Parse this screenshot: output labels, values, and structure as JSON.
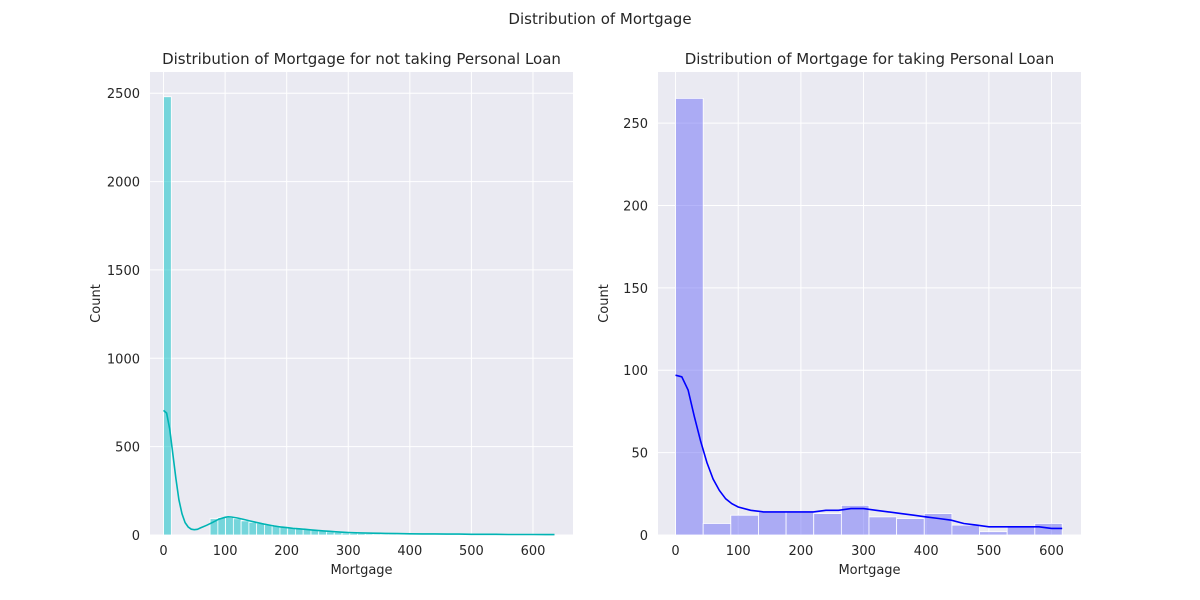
{
  "figure": {
    "suptitle": "Distribution of Mortgage"
  },
  "chart_data": [
    {
      "type": "bar",
      "subtype": "histogram-with-kde",
      "title": "Distribution of Mortgage for not taking Personal Loan",
      "xlabel": "Mortgage",
      "ylabel": "Count",
      "xlim": [
        -22,
        665
      ],
      "ylim": [
        0,
        2620
      ],
      "x_ticks": [
        0,
        100,
        200,
        300,
        400,
        500,
        600
      ],
      "y_ticks": [
        0,
        500,
        1000,
        1500,
        2000,
        2500
      ],
      "grid": true,
      "background": "#eaeaf2",
      "bar_color": "#00bfc4",
      "kde_color": "#00b4b4",
      "bins": [
        [
          0,
          12.6,
          2480
        ],
        [
          75.6,
          88.2,
          92
        ],
        [
          88.2,
          100.8,
          98
        ],
        [
          100.8,
          113.4,
          99
        ],
        [
          113.4,
          126,
          92
        ],
        [
          126,
          138.6,
          80
        ],
        [
          138.6,
          151.2,
          72
        ],
        [
          151.2,
          163.8,
          66
        ],
        [
          163.8,
          176.4,
          58
        ],
        [
          176.4,
          189,
          52
        ],
        [
          189,
          201.6,
          46
        ],
        [
          201.6,
          214.2,
          42
        ],
        [
          214.2,
          226.8,
          38
        ],
        [
          226.8,
          239.4,
          32
        ],
        [
          239.4,
          252,
          28
        ],
        [
          252,
          264.6,
          22
        ],
        [
          264.6,
          277.2,
          18
        ],
        [
          277.2,
          289.8,
          15
        ],
        [
          289.8,
          302.4,
          12
        ],
        [
          302.4,
          315,
          10
        ],
        [
          315,
          327.6,
          9
        ],
        [
          327.6,
          340.2,
          7
        ],
        [
          340.2,
          352.8,
          6
        ],
        [
          352.8,
          365.4,
          5
        ],
        [
          365.4,
          378,
          5
        ],
        [
          378,
          390.6,
          4
        ],
        [
          390.6,
          403.2,
          4
        ],
        [
          403.2,
          415.8,
          3
        ],
        [
          415.8,
          428.4,
          3
        ],
        [
          428.4,
          441,
          3
        ],
        [
          441,
          453.6,
          2
        ],
        [
          453.6,
          466.2,
          2
        ],
        [
          466.2,
          478.8,
          2
        ],
        [
          478.8,
          491.4,
          2
        ],
        [
          491.4,
          504,
          1
        ],
        [
          504,
          516.6,
          1
        ],
        [
          516.6,
          529.2,
          1
        ],
        [
          529.2,
          541.8,
          1
        ],
        [
          541.8,
          554.4,
          1
        ],
        [
          554.4,
          567,
          1
        ],
        [
          567,
          579.6,
          1
        ],
        [
          579.6,
          592.2,
          1
        ],
        [
          592.2,
          604.8,
          1
        ],
        [
          604.8,
          617.4,
          1
        ],
        [
          617.4,
          630,
          1
        ]
      ],
      "kde": [
        [
          0,
          705
        ],
        [
          5,
          690
        ],
        [
          10,
          600
        ],
        [
          15,
          460
        ],
        [
          20,
          320
        ],
        [
          25,
          200
        ],
        [
          30,
          120
        ],
        [
          35,
          70
        ],
        [
          40,
          45
        ],
        [
          45,
          33
        ],
        [
          50,
          30
        ],
        [
          55,
          32
        ],
        [
          60,
          40
        ],
        [
          70,
          55
        ],
        [
          80,
          72
        ],
        [
          90,
          90
        ],
        [
          100,
          100
        ],
        [
          105,
          103
        ],
        [
          110,
          102
        ],
        [
          120,
          96
        ],
        [
          130,
          88
        ],
        [
          140,
          80
        ],
        [
          150,
          72
        ],
        [
          160,
          64
        ],
        [
          170,
          57
        ],
        [
          180,
          51
        ],
        [
          190,
          46
        ],
        [
          200,
          42
        ],
        [
          210,
          38
        ],
        [
          220,
          35
        ],
        [
          230,
          32
        ],
        [
          240,
          29
        ],
        [
          250,
          26
        ],
        [
          260,
          23
        ],
        [
          270,
          21
        ],
        [
          280,
          18
        ],
        [
          290,
          16
        ],
        [
          300,
          14
        ],
        [
          320,
          12
        ],
        [
          340,
          10
        ],
        [
          360,
          9
        ],
        [
          380,
          8
        ],
        [
          400,
          7
        ],
        [
          420,
          6
        ],
        [
          440,
          6
        ],
        [
          460,
          5
        ],
        [
          480,
          5
        ],
        [
          500,
          4
        ],
        [
          520,
          4
        ],
        [
          540,
          4
        ],
        [
          560,
          3
        ],
        [
          580,
          3
        ],
        [
          600,
          3
        ],
        [
          620,
          2
        ],
        [
          635,
          2
        ]
      ]
    },
    {
      "type": "bar",
      "subtype": "histogram-with-kde",
      "title": "Distribution of Mortgage for taking Personal Loan",
      "xlabel": "Mortgage",
      "ylabel": "Count",
      "xlim": [
        -28,
        647
      ],
      "ylim": [
        0,
        281
      ],
      "x_ticks": [
        0,
        100,
        200,
        300,
        400,
        500,
        600
      ],
      "y_ticks": [
        0,
        50,
        100,
        150,
        200,
        250
      ],
      "grid": true,
      "background": "#eaeaf2",
      "bar_color": "#6b6bf5",
      "kde_color": "#0000ff",
      "bins": [
        [
          0,
          44.1,
          265
        ],
        [
          44.1,
          88.2,
          7
        ],
        [
          88.2,
          132.3,
          12
        ],
        [
          132.3,
          176.4,
          14
        ],
        [
          176.4,
          220.5,
          14
        ],
        [
          220.5,
          264.6,
          13
        ],
        [
          264.6,
          308.7,
          18
        ],
        [
          308.7,
          352.8,
          11
        ],
        [
          352.8,
          396.9,
          10
        ],
        [
          396.9,
          441,
          13
        ],
        [
          441,
          485.1,
          6
        ],
        [
          485.1,
          529.2,
          2
        ],
        [
          529.2,
          573.3,
          5
        ],
        [
          573.3,
          617,
          7
        ]
      ],
      "kde": [
        [
          0,
          97
        ],
        [
          10,
          96
        ],
        [
          20,
          88
        ],
        [
          30,
          72
        ],
        [
          40,
          57
        ],
        [
          50,
          44
        ],
        [
          60,
          34
        ],
        [
          70,
          27
        ],
        [
          80,
          22
        ],
        [
          90,
          19
        ],
        [
          100,
          17
        ],
        [
          120,
          15
        ],
        [
          140,
          14
        ],
        [
          160,
          14
        ],
        [
          180,
          14
        ],
        [
          200,
          14
        ],
        [
          220,
          14
        ],
        [
          240,
          15
        ],
        [
          260,
          15
        ],
        [
          280,
          16
        ],
        [
          300,
          16
        ],
        [
          320,
          15
        ],
        [
          340,
          14
        ],
        [
          360,
          13
        ],
        [
          380,
          12
        ],
        [
          400,
          11
        ],
        [
          420,
          10
        ],
        [
          440,
          9
        ],
        [
          460,
          7
        ],
        [
          480,
          6
        ],
        [
          500,
          5
        ],
        [
          520,
          5
        ],
        [
          540,
          5
        ],
        [
          560,
          5
        ],
        [
          580,
          5
        ],
        [
          600,
          4
        ],
        [
          617,
          4
        ]
      ]
    }
  ]
}
